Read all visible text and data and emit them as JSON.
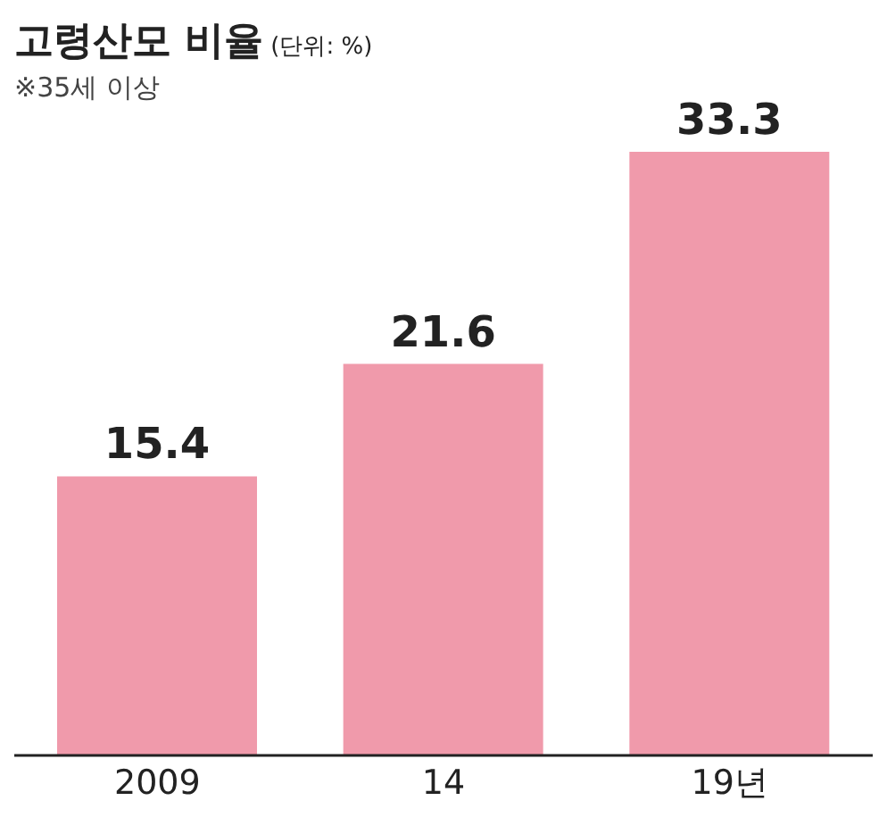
{
  "chart_data": {
    "type": "bar",
    "title": "고령산모 비율",
    "subtitle": "(단위: %)",
    "annotations": [
      "※35세 이상"
    ],
    "categories": [
      "2009",
      "14",
      "19년"
    ],
    "values": [
      15.4,
      21.6,
      33.3
    ],
    "color": "#f09aab",
    "data_labels": true,
    "grid": false
  }
}
